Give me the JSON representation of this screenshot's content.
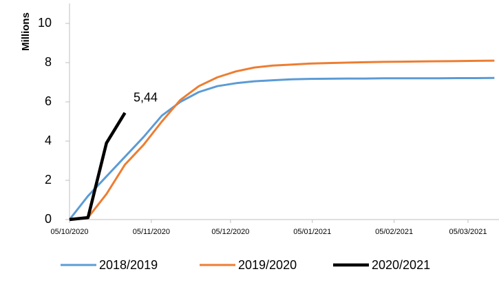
{
  "chart_data": {
    "type": "line",
    "y_label": "Millions",
    "x": [
      "05/10/2020",
      "12/10/2020",
      "19/10/2020",
      "26/10/2020",
      "02/11/2020",
      "09/11/2020",
      "16/11/2020",
      "23/11/2020",
      "30/11/2020",
      "07/12/2020",
      "14/12/2020",
      "21/12/2020",
      "28/12/2020",
      "04/01/2021",
      "11/01/2021",
      "18/01/2021",
      "25/01/2021",
      "01/02/2021",
      "08/02/2021",
      "15/02/2021",
      "22/02/2021",
      "01/03/2021",
      "08/03/2021",
      "15/03/2021"
    ],
    "series": [
      {
        "name": "2018/2019",
        "color": "#5b9bd5",
        "width": 3,
        "values": [
          0,
          1.2,
          2.2,
          3.2,
          4.2,
          5.3,
          6.0,
          6.5,
          6.8,
          6.95,
          7.05,
          7.1,
          7.15,
          7.17,
          7.18,
          7.19,
          7.19,
          7.2,
          7.2,
          7.2,
          7.2,
          7.21,
          7.21,
          7.22
        ]
      },
      {
        "name": "2019/2020",
        "color": "#ed7d31",
        "width": 3,
        "values": [
          0,
          0.1,
          1.3,
          2.8,
          3.8,
          5.0,
          6.1,
          6.8,
          7.25,
          7.55,
          7.75,
          7.85,
          7.9,
          7.95,
          7.98,
          8.0,
          8.02,
          8.04,
          8.05,
          8.06,
          8.07,
          8.08,
          8.09,
          8.1
        ]
      },
      {
        "name": "2020/2021",
        "color": "#000000",
        "width": 4.5,
        "values": [
          0,
          0.1,
          3.9,
          5.44,
          null,
          null,
          null,
          null,
          null,
          null,
          null,
          null,
          null,
          null,
          null,
          null,
          null,
          null,
          null,
          null,
          null,
          null,
          null,
          null
        ],
        "value_labels": [
          null,
          null,
          null,
          "5,44",
          null,
          null,
          null,
          null,
          null,
          null,
          null,
          null,
          null,
          null,
          null,
          null,
          null,
          null,
          null,
          null,
          null,
          null,
          null,
          null
        ]
      }
    ],
    "xlim": [
      "05/10/2020",
      "17/03/2021"
    ],
    "xticks": [
      "05/10/2020",
      "05/11/2020",
      "05/12/2020",
      "05/01/2021",
      "05/02/2021",
      "05/03/2021"
    ],
    "ylim": [
      0,
      10
    ],
    "yticks": [
      0,
      2,
      4,
      6,
      8,
      10
    ],
    "legend": "bottom"
  }
}
